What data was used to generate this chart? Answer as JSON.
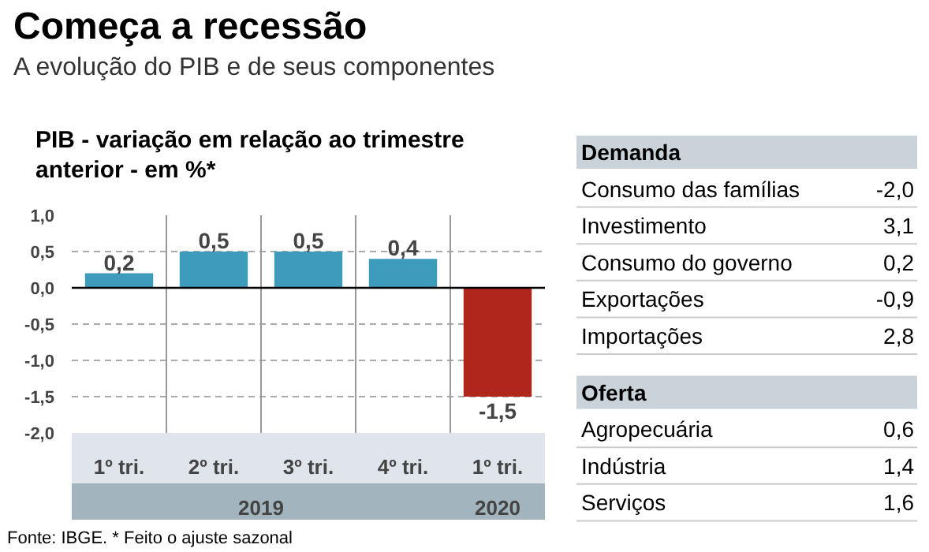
{
  "chart_data": [
    {
      "type": "bar",
      "title": "Começa a recessão",
      "subtitle": "A evolução do PIB e de seus componentes",
      "ylabel": "PIB - variação em relação ao trimestre anterior - em %*",
      "categories": [
        "1º tri.",
        "2º tri.",
        "3º tri.",
        "4º tri.",
        "1º tri."
      ],
      "values": [
        0.2,
        0.5,
        0.5,
        0.4,
        -1.5
      ],
      "colors": [
        "#3d9cbb",
        "#3d9cbb",
        "#3d9cbb",
        "#3d9cbb",
        "#b0261d"
      ],
      "value_labels": [
        "0,2",
        "0,5",
        "0,5",
        "0,4",
        "-1,5"
      ],
      "ylim": [
        -2.0,
        1.0
      ],
      "yticks": [
        {
          "value": 1.0,
          "label": "1,0"
        },
        {
          "value": 0.5,
          "label": "0,5"
        },
        {
          "value": 0.0,
          "label": "0,0"
        },
        {
          "value": -0.5,
          "label": "-0,5"
        },
        {
          "value": -1.0,
          "label": "-1,0"
        },
        {
          "value": -1.5,
          "label": "-1,5"
        },
        {
          "value": -2.0,
          "label": "-2,0"
        }
      ],
      "grid": true,
      "annotations": [
        "2019",
        "2020",
        "Fonte: IBGE. * Feito o ajuste sazonal"
      ]
    },
    {
      "type": "other",
      "title": "Demanda",
      "categories": [
        "Consumo das famílias",
        "Investimento",
        "Consumo do governo",
        "Exportações",
        "Importações"
      ],
      "values": [
        -2.0,
        3.1,
        0.2,
        -0.9,
        2.8
      ],
      "value_labels": [
        "-2,0",
        "3,1",
        "0,2",
        "-0,9",
        "2,8"
      ]
    },
    {
      "type": "other",
      "title": "Oferta",
      "categories": [
        "Agropecuária",
        "Indústria",
        "Serviços"
      ],
      "values": [
        0.6,
        1.4,
        1.6
      ],
      "value_labels": [
        "0,6",
        "1,4",
        "1,6"
      ]
    }
  ]
}
